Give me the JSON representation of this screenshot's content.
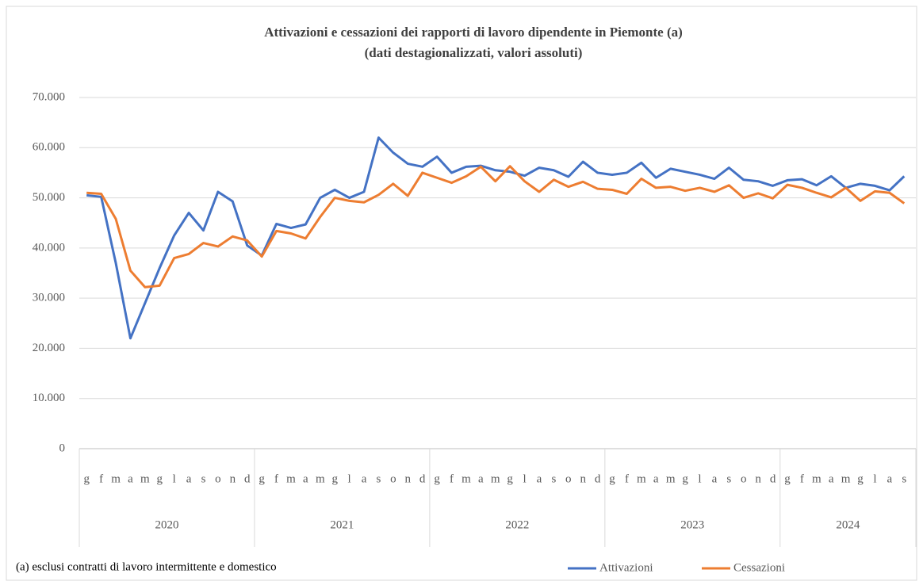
{
  "chart_data": {
    "type": "line",
    "title": "Attivazioni e cessazioni dei rapporti di lavoro dipendente in Piemonte (a)",
    "subtitle": "(dati destagionalizzati, valori assoluti)",
    "note": "(a) esclusi contratti di lavoro intermittente e domestico",
    "categories": [
      "g",
      "f",
      "m",
      "a",
      "m",
      "g",
      "l",
      "a",
      "s",
      "o",
      "n",
      "d",
      "g",
      "f",
      "m",
      "a",
      "m",
      "g",
      "l",
      "a",
      "s",
      "o",
      "n",
      "d",
      "g",
      "f",
      "m",
      "a",
      "m",
      "g",
      "l",
      "a",
      "s",
      "o",
      "n",
      "d",
      "g",
      "f",
      "m",
      "a",
      "m",
      "g",
      "l",
      "a",
      "s",
      "o",
      "n",
      "d",
      "g",
      "f",
      "m",
      "a",
      "m",
      "g",
      "l",
      "a",
      "s"
    ],
    "years": [
      "2020",
      "2021",
      "2022",
      "2023",
      "2024"
    ],
    "series": [
      {
        "name": "Attivazioni",
        "color": "#4472c4",
        "values": [
          50500,
          50200,
          37000,
          22000,
          29000,
          36000,
          42500,
          47000,
          43500,
          51200,
          49300,
          40500,
          38500,
          44800,
          44000,
          44700,
          50000,
          51600,
          50000,
          51200,
          62000,
          59000,
          56800,
          56200,
          58200,
          55000,
          56200,
          56400,
          55500,
          55200,
          54400,
          56000,
          55500,
          54200,
          57200,
          55000,
          54600,
          55000,
          57000,
          54000,
          55800,
          55200,
          54600,
          53800,
          56000,
          53600,
          53300,
          52400,
          53500,
          53700,
          52500,
          54300,
          52000,
          52800,
          52400,
          51500,
          54300
        ]
      },
      {
        "name": "Cessazioni",
        "color": "#ed7d31",
        "values": [
          51000,
          50800,
          45800,
          35500,
          32200,
          32500,
          38000,
          38800,
          41000,
          40300,
          42300,
          41500,
          38300,
          43400,
          42900,
          41900,
          46200,
          50000,
          49400,
          49100,
          50600,
          52800,
          50400,
          55000,
          54000,
          53000,
          54300,
          56200,
          53300,
          56300,
          53300,
          51200,
          53600,
          52200,
          53200,
          51800,
          51600,
          50800,
          53800,
          52000,
          52200,
          51400,
          52000,
          51200,
          52500,
          50000,
          50900,
          49900,
          52600,
          52000,
          51000,
          50100,
          52000,
          49400,
          51300,
          51000,
          48900
        ]
      }
    ],
    "ylim": [
      0,
      70000
    ],
    "yticks": [
      0,
      {
        "value": 10000,
        "label": "10.000"
      },
      {
        "value": 20000,
        "label": "20.000"
      },
      {
        "value": 30000,
        "label": "30.000"
      },
      {
        "value": 40000,
        "label": "40.000"
      },
      {
        "value": 50000,
        "label": "50.000"
      },
      {
        "value": 60000,
        "label": "60.000"
      },
      {
        "value": 70000,
        "label": "70.000"
      }
    ],
    "grid": true
  }
}
